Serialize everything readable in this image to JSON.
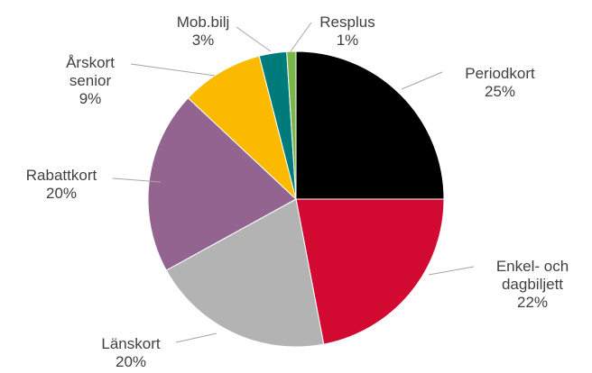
{
  "chart_data": {
    "type": "pie",
    "categories": [
      "Periodkort",
      "Enkel- och dagbiljett",
      "Länskort",
      "Rabattkort",
      "Årskort senior",
      "Mob.bilj",
      "Resplus"
    ],
    "values": [
      25,
      22,
      20,
      20,
      9,
      3,
      1
    ],
    "value_labels": [
      "25%",
      "22%",
      "20%",
      "20%",
      "9%",
      "3%",
      "1%"
    ],
    "colors": [
      "#000000",
      "#d20a32",
      "#b3b3b3",
      "#936490",
      "#fbb900",
      "#007b7b",
      "#7ab648"
    ]
  }
}
